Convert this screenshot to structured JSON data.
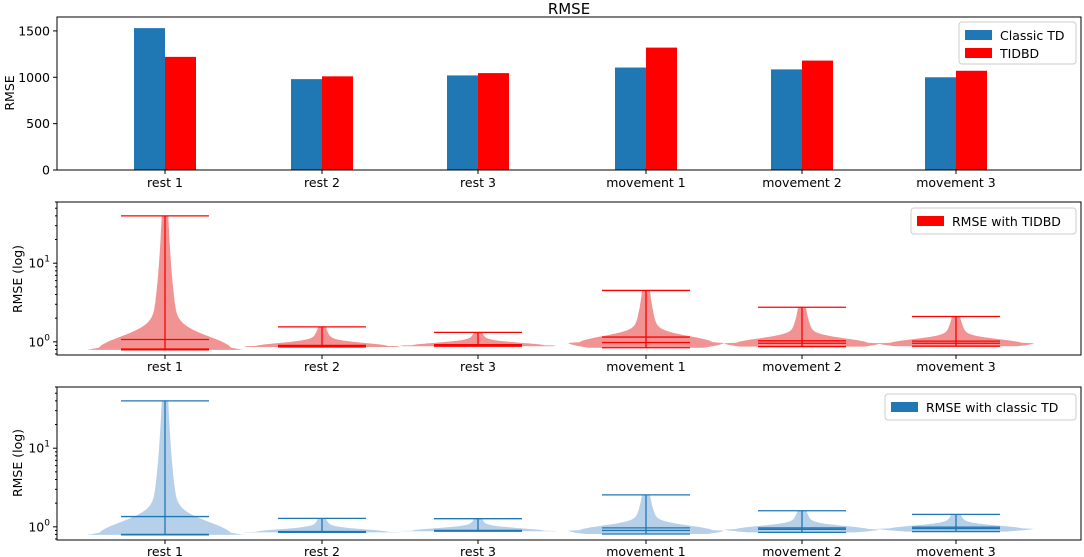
{
  "chart_data": [
    {
      "type": "bar",
      "title": "RMSE",
      "xlabel": "",
      "ylabel": "RMSE",
      "categories": [
        "rest 1",
        "rest 2",
        "rest 3",
        "movement 1",
        "movement 2",
        "movement 3"
      ],
      "ylim": [
        0,
        1650
      ],
      "yticks": [
        0,
        500,
        1000,
        1500
      ],
      "legend_position": "top-right",
      "series": [
        {
          "name": "Classic TD",
          "color": "#1f77b4",
          "values": [
            1530,
            980,
            1020,
            1105,
            1085,
            1000
          ]
        },
        {
          "name": "TIDBD",
          "color": "#ff0000",
          "values": [
            1220,
            1010,
            1045,
            1320,
            1180,
            1070
          ]
        }
      ]
    },
    {
      "type": "violin",
      "title": "",
      "xlabel": "",
      "ylabel": "RMSE (log)",
      "yscale": "log",
      "ylim": [
        0.68,
        60
      ],
      "yticks": [
        1,
        10
      ],
      "ytick_labels": [
        "10^0",
        "10^1"
      ],
      "categories": [
        "rest 1",
        "rest 2",
        "rest 3",
        "movement 1",
        "movement 2",
        "movement 3"
      ],
      "legend_position": "top-right",
      "series": [
        {
          "name": "RMSE with TIDBD",
          "color": "#ff0000",
          "fill_color": "#f08080",
          "min": [
            0.79,
            0.86,
            0.88,
            0.84,
            0.87,
            0.88
          ],
          "max": [
            40,
            1.55,
            1.32,
            4.5,
            2.75,
            2.1
          ],
          "mean": [
            1.07,
            0.9,
            0.92,
            1.15,
            1.03,
            1.02
          ],
          "median": [
            0.81,
            0.88,
            0.9,
            0.98,
            0.96,
            0.96
          ]
        }
      ]
    },
    {
      "type": "violin",
      "title": "",
      "xlabel": "",
      "ylabel": "RMSE (log)",
      "yscale": "log",
      "ylim": [
        0.68,
        60
      ],
      "yticks": [
        1,
        10
      ],
      "ytick_labels": [
        "10^0",
        "10^1"
      ],
      "categories": [
        "rest 1",
        "rest 2",
        "rest 3",
        "movement 1",
        "movement 2",
        "movement 3"
      ],
      "legend_position": "top-right",
      "series": [
        {
          "name": "RMSE with classic TD",
          "color": "#1f77b4",
          "fill_color": "#a9c8e6",
          "min": [
            0.79,
            0.85,
            0.88,
            0.81,
            0.85,
            0.87
          ],
          "max": [
            40,
            1.28,
            1.27,
            2.55,
            1.6,
            1.44
          ],
          "mean": [
            1.35,
            0.87,
            0.9,
            0.97,
            0.97,
            0.99
          ],
          "median": [
            0.8,
            0.86,
            0.89,
            0.9,
            0.93,
            0.95
          ]
        }
      ]
    }
  ]
}
